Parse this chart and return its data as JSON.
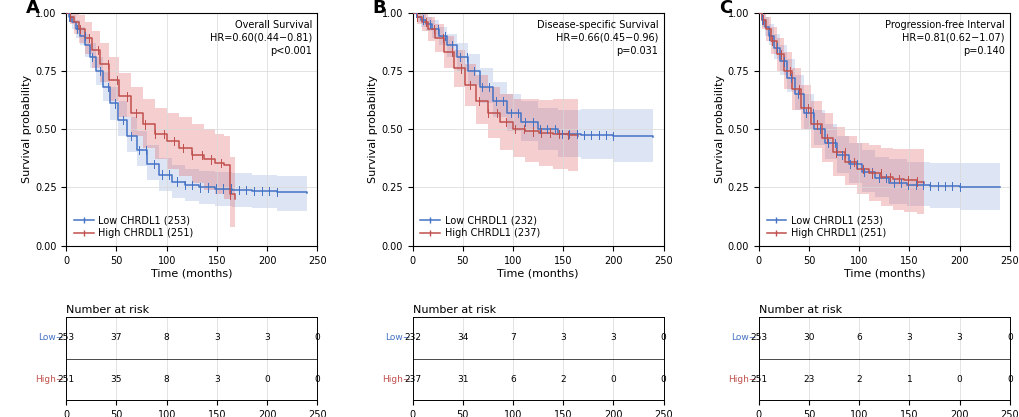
{
  "panels": [
    {
      "label": "A",
      "title": "Overall Survival",
      "hr_text": "HR=0.60(0.44−0.81)",
      "p_text": "p<0.001",
      "low_n": 253,
      "high_n": 251,
      "risk_low": [
        253,
        37,
        8,
        3,
        3,
        0
      ],
      "risk_high": [
        251,
        35,
        8,
        3,
        0,
        0
      ],
      "low_color": "#4472C4",
      "high_color": "#C0504D",
      "low_fill": "#8FAADC",
      "high_fill": "#E06060",
      "low_time": [
        0,
        3,
        6,
        10,
        14,
        19,
        24,
        30,
        37,
        44,
        52,
        60,
        70,
        80,
        92,
        105,
        118,
        132,
        148,
        165,
        185,
        210,
        240
      ],
      "low_surv": [
        1.0,
        0.98,
        0.96,
        0.93,
        0.9,
        0.86,
        0.81,
        0.75,
        0.68,
        0.61,
        0.54,
        0.47,
        0.41,
        0.35,
        0.305,
        0.275,
        0.26,
        0.25,
        0.245,
        0.24,
        0.235,
        0.23,
        0.225
      ],
      "low_ci_low": [
        1.0,
        0.96,
        0.93,
        0.89,
        0.86,
        0.81,
        0.76,
        0.69,
        0.62,
        0.54,
        0.47,
        0.4,
        0.34,
        0.28,
        0.235,
        0.205,
        0.19,
        0.18,
        0.17,
        0.165,
        0.16,
        0.15,
        0.14
      ],
      "low_ci_high": [
        1.0,
        1.0,
        0.99,
        0.97,
        0.94,
        0.91,
        0.87,
        0.81,
        0.75,
        0.68,
        0.62,
        0.55,
        0.49,
        0.43,
        0.375,
        0.345,
        0.33,
        0.32,
        0.315,
        0.31,
        0.305,
        0.3,
        0.295
      ],
      "high_time": [
        0,
        4,
        8,
        13,
        19,
        26,
        34,
        43,
        53,
        64,
        76,
        88,
        100,
        112,
        125,
        137,
        148,
        157,
        163,
        168
      ],
      "high_surv": [
        1.0,
        0.98,
        0.96,
        0.93,
        0.89,
        0.84,
        0.78,
        0.71,
        0.64,
        0.57,
        0.52,
        0.48,
        0.45,
        0.42,
        0.39,
        0.37,
        0.355,
        0.345,
        0.22,
        0.2
      ],
      "high_ci_low": [
        1.0,
        0.95,
        0.91,
        0.87,
        0.82,
        0.76,
        0.7,
        0.62,
        0.55,
        0.47,
        0.42,
        0.37,
        0.33,
        0.3,
        0.27,
        0.24,
        0.22,
        0.2,
        0.08,
        0.06
      ],
      "high_ci_high": [
        1.0,
        1.0,
        1.0,
        0.99,
        0.96,
        0.92,
        0.87,
        0.81,
        0.74,
        0.68,
        0.63,
        0.59,
        0.57,
        0.55,
        0.52,
        0.5,
        0.48,
        0.47,
        0.38,
        0.37
      ]
    },
    {
      "label": "B",
      "title": "Disease-specific Survival",
      "hr_text": "HR=0.66(0.45−0.96)",
      "p_text": "p=0.031",
      "low_n": 232,
      "high_n": 237,
      "risk_low": [
        232,
        34,
        7,
        3,
        3,
        0
      ],
      "risk_high": [
        237,
        31,
        6,
        2,
        0,
        0
      ],
      "low_color": "#4472C4",
      "high_color": "#C0504D",
      "low_fill": "#8FAADC",
      "high_fill": "#E06060",
      "low_time": [
        0,
        4,
        8,
        13,
        19,
        26,
        34,
        44,
        55,
        67,
        80,
        94,
        108,
        125,
        145,
        168,
        200,
        240
      ],
      "low_surv": [
        1.0,
        0.98,
        0.97,
        0.95,
        0.93,
        0.9,
        0.86,
        0.81,
        0.75,
        0.68,
        0.62,
        0.57,
        0.53,
        0.5,
        0.48,
        0.475,
        0.47,
        0.465
      ],
      "low_ci_low": [
        1.0,
        0.96,
        0.94,
        0.92,
        0.89,
        0.86,
        0.81,
        0.75,
        0.69,
        0.61,
        0.55,
        0.49,
        0.45,
        0.41,
        0.38,
        0.37,
        0.36,
        0.35
      ],
      "low_ci_high": [
        1.0,
        1.0,
        1.0,
        0.98,
        0.97,
        0.94,
        0.91,
        0.87,
        0.82,
        0.76,
        0.7,
        0.65,
        0.62,
        0.59,
        0.58,
        0.585,
        0.585,
        0.6
      ],
      "high_time": [
        0,
        4,
        9,
        15,
        22,
        31,
        41,
        52,
        63,
        75,
        87,
        100,
        112,
        126,
        140,
        155,
        165
      ],
      "high_surv": [
        1.0,
        0.98,
        0.96,
        0.93,
        0.89,
        0.83,
        0.76,
        0.69,
        0.62,
        0.57,
        0.53,
        0.5,
        0.49,
        0.485,
        0.48,
        0.475,
        0.47
      ],
      "high_ci_low": [
        1.0,
        0.95,
        0.92,
        0.88,
        0.83,
        0.76,
        0.68,
        0.6,
        0.52,
        0.46,
        0.41,
        0.38,
        0.36,
        0.34,
        0.33,
        0.32,
        0.3
      ],
      "high_ci_high": [
        1.0,
        1.0,
        1.0,
        0.98,
        0.95,
        0.9,
        0.84,
        0.78,
        0.73,
        0.68,
        0.65,
        0.63,
        0.63,
        0.625,
        0.63,
        0.63,
        0.64
      ]
    },
    {
      "label": "C",
      "title": "Progression-free Interval",
      "hr_text": "HR=0.81(0.62−1.07)",
      "p_text": "p=0.140",
      "low_n": 253,
      "high_n": 251,
      "risk_low": [
        253,
        30,
        6,
        3,
        3,
        0
      ],
      "risk_high": [
        251,
        23,
        2,
        1,
        0,
        0
      ],
      "low_color": "#4472C4",
      "high_color": "#C0504D",
      "low_fill": "#8FAADC",
      "high_fill": "#E06060",
      "low_time": [
        0,
        3,
        6,
        10,
        15,
        21,
        28,
        36,
        45,
        55,
        66,
        78,
        90,
        103,
        116,
        130,
        148,
        170,
        200,
        240
      ],
      "low_surv": [
        1.0,
        0.97,
        0.94,
        0.9,
        0.85,
        0.79,
        0.72,
        0.65,
        0.57,
        0.5,
        0.44,
        0.39,
        0.35,
        0.315,
        0.29,
        0.27,
        0.26,
        0.255,
        0.252,
        0.25
      ],
      "low_ci_low": [
        1.0,
        0.94,
        0.9,
        0.86,
        0.8,
        0.73,
        0.66,
        0.58,
        0.5,
        0.43,
        0.37,
        0.31,
        0.27,
        0.23,
        0.21,
        0.18,
        0.17,
        0.16,
        0.155,
        0.14
      ],
      "low_ci_high": [
        1.0,
        1.0,
        0.98,
        0.95,
        0.91,
        0.86,
        0.8,
        0.73,
        0.65,
        0.58,
        0.52,
        0.47,
        0.44,
        0.41,
        0.38,
        0.37,
        0.36,
        0.355,
        0.355,
        0.38
      ],
      "high_time": [
        0,
        3,
        7,
        12,
        18,
        25,
        33,
        42,
        52,
        63,
        74,
        86,
        98,
        110,
        122,
        134,
        145,
        158,
        165
      ],
      "high_surv": [
        1.0,
        0.97,
        0.93,
        0.88,
        0.82,
        0.75,
        0.67,
        0.59,
        0.52,
        0.46,
        0.4,
        0.36,
        0.33,
        0.31,
        0.295,
        0.285,
        0.28,
        0.275,
        0.27
      ],
      "high_ci_low": [
        1.0,
        0.93,
        0.88,
        0.82,
        0.75,
        0.67,
        0.58,
        0.5,
        0.42,
        0.36,
        0.3,
        0.26,
        0.22,
        0.19,
        0.17,
        0.155,
        0.145,
        0.135,
        0.12
      ],
      "high_ci_high": [
        1.0,
        1.0,
        0.98,
        0.94,
        0.89,
        0.83,
        0.76,
        0.69,
        0.62,
        0.57,
        0.51,
        0.47,
        0.44,
        0.43,
        0.42,
        0.415,
        0.415,
        0.415,
        0.42
      ]
    }
  ],
  "risk_times": [
    0,
    50,
    100,
    150,
    200,
    250
  ],
  "bg_color": "#FFFFFF",
  "grid_color": "#D8D8D8",
  "font_size": 8,
  "tick_font_size": 7,
  "ann_fontsize": 7,
  "legend_fontsize": 7
}
